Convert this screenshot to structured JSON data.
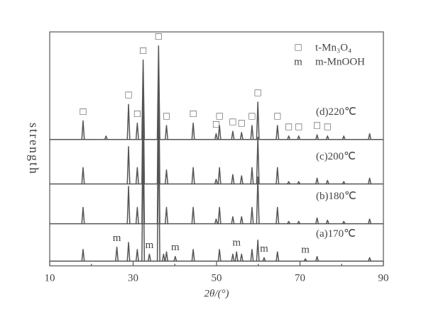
{
  "chart_data": {
    "type": "xrd",
    "x_label": "2θ/(°)",
    "y_label": "strength",
    "xlim": [
      10,
      90
    ],
    "ylim": [
      0,
      100
    ],
    "xticks": [
      10,
      30,
      50,
      70,
      90
    ],
    "xminorticks": [
      20,
      40,
      60,
      80
    ],
    "series": [
      {
        "name": "(a)170℃",
        "color": "#555555",
        "baseline": 2,
        "x": [
          18,
          26.1,
          28.9,
          31,
          32.4,
          33.9,
          36.1,
          37.3,
          38,
          40.1,
          44.4,
          50.7,
          53.9,
          54.8,
          56,
          58.5,
          59.9,
          61.4,
          64.6,
          71.3,
          74.1,
          86.7
        ],
        "values": [
          7,
          8,
          10,
          7,
          52,
          5,
          60,
          5,
          6,
          4,
          7,
          7,
          5,
          6,
          5,
          7,
          11,
          3.5,
          6,
          3,
          4,
          3.5
        ]
      },
      {
        "name": "(b)180℃",
        "color": "#555555",
        "baseline": 18,
        "x": [
          18,
          28.9,
          31,
          32.4,
          36.1,
          38,
          44.4,
          49.9,
          50.7,
          53.9,
          56,
          58.5,
          59.9,
          64.6,
          67.3,
          69.7,
          74.1,
          76.6,
          80.5,
          86.7
        ],
        "values": [
          25,
          34,
          25,
          65,
          70,
          25,
          25,
          20,
          25,
          21,
          21,
          25,
          38,
          25,
          19,
          19,
          20.5,
          19.5,
          19,
          20
        ]
      },
      {
        "name": "(c)200℃",
        "color": "#555555",
        "baseline": 35,
        "x": [
          18,
          28.9,
          31,
          32.4,
          36.1,
          38,
          44.4,
          49.9,
          50.7,
          53.9,
          56,
          58.5,
          59.9,
          64.6,
          67.3,
          69.7,
          74.1,
          76.6,
          80.5,
          86.7
        ],
        "values": [
          42,
          51,
          42,
          80,
          85,
          41,
          42,
          37,
          42,
          39,
          38.5,
          42,
          55,
          42,
          36,
          36,
          37.5,
          36.5,
          36,
          37.5
        ]
      },
      {
        "name": "(d)220℃",
        "color": "#555555",
        "baseline": 54,
        "x": [
          18,
          23.5,
          28.9,
          31,
          32.4,
          36.1,
          38,
          44.4,
          49.9,
          50.7,
          53.9,
          56,
          58.5,
          59.9,
          64.6,
          67.3,
          69.7,
          74.1,
          76.6,
          80.5,
          86.7
        ],
        "values": [
          62,
          55.5,
          69,
          61,
          88,
          94,
          60,
          61,
          56.5,
          60,
          57.5,
          57,
          60,
          70,
          60,
          55.5,
          55.5,
          56,
          55.5,
          55.5,
          56.5
        ]
      }
    ],
    "markers": [
      {
        "symbol": "□",
        "label": "t-Mn₃O₄",
        "x": [
          18,
          28.9,
          31,
          32.4,
          36.1,
          38,
          44.4,
          49.9,
          50.7,
          53.9,
          56,
          58.5,
          59.9,
          64.6,
          67.3,
          69.7,
          74.1,
          76.6
        ]
      },
      {
        "symbol": "m",
        "label": "m-MnOOH",
        "x": [
          26.1,
          33.9,
          40.1,
          54.8,
          61.4,
          71.3
        ]
      }
    ]
  }
}
